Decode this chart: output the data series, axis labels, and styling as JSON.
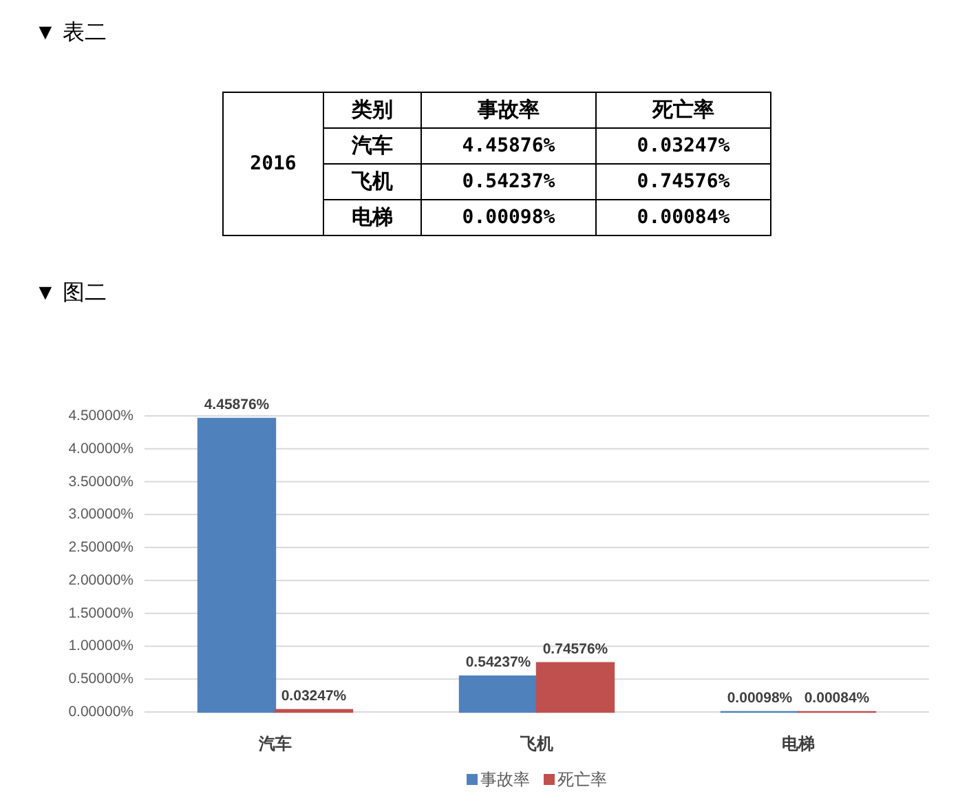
{
  "chart_data": [
    {
      "type": "other",
      "title": "▼ 表二",
      "ylabel": "类别",
      "annotations": [
        "2016"
      ],
      "categories": [
        "事故率",
        "死亡率"
      ],
      "y_categories": [
        "汽车",
        "飞机",
        "电梯"
      ],
      "cell_labels": [
        [
          "4.45876%",
          "0.03247%"
        ],
        [
          "0.54237%",
          "0.74576%"
        ],
        [
          "0.00098%",
          "0.00084%"
        ]
      ]
    },
    {
      "type": "bar",
      "title": "▼ 图二",
      "categories": [
        "汽车",
        "飞机",
        "电梯"
      ],
      "series": [
        {
          "name": "事故率",
          "color": "#4f81bd",
          "values": [
            4.45876,
            0.54237,
            0.00098
          ],
          "value_labels": [
            "4.45876%",
            "0.54237%",
            "0.00098%"
          ]
        },
        {
          "name": "死亡率",
          "color": "#c0504d",
          "values": [
            0.03247,
            0.74576,
            0.00084
          ],
          "value_labels": [
            "0.03247%",
            "0.74576%",
            "0.00084%"
          ]
        }
      ],
      "ylim": [
        0,
        4.5
      ],
      "yticks": [
        {
          "value": 0,
          "label": "0.00000%"
        },
        {
          "value": 0.5,
          "label": "0.50000%"
        },
        {
          "value": 1,
          "label": "1.00000%"
        },
        {
          "value": 1.5,
          "label": "1.50000%"
        },
        {
          "value": 2,
          "label": "2.00000%"
        },
        {
          "value": 2.5,
          "label": "2.50000%"
        },
        {
          "value": 3,
          "label": "3.00000%"
        },
        {
          "value": 3.5,
          "label": "3.50000%"
        },
        {
          "value": 4,
          "label": "4.00000%"
        },
        {
          "value": 4.5,
          "label": "4.50000%"
        }
      ],
      "grid": "y",
      "legend": "bottom"
    }
  ]
}
